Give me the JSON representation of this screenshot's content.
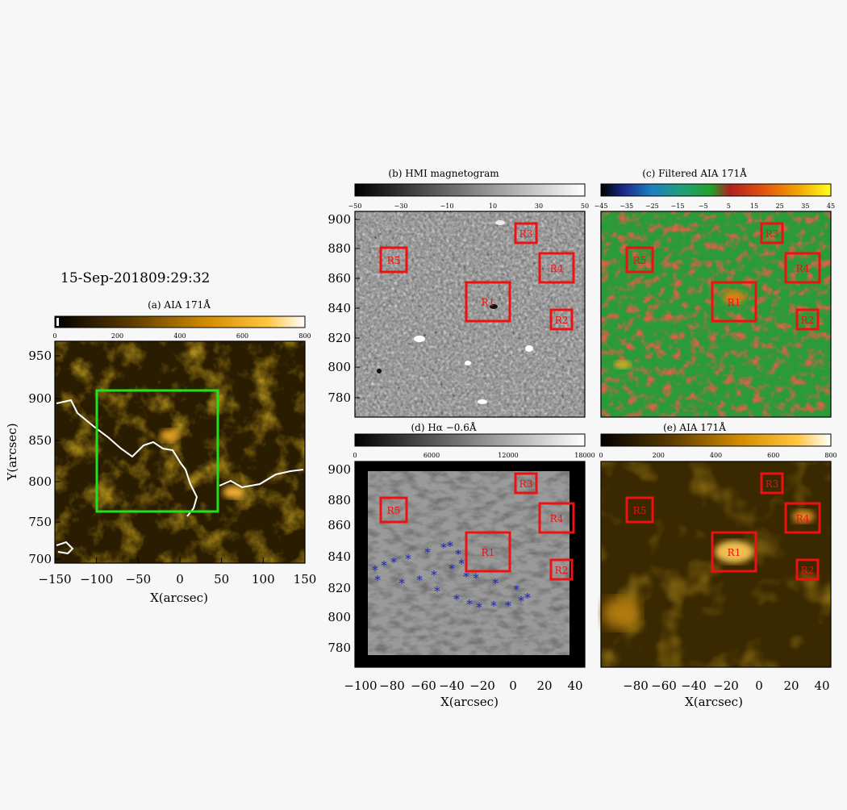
{
  "figure": {
    "timestamp": "15-Sep-201809:29:32",
    "panel_a": {
      "title": "(a) AIA 171Å",
      "colorbar_ticks": [
        "0",
        "200",
        "400",
        "600",
        "800"
      ],
      "y_ticks": [
        "950",
        "900",
        "850",
        "800",
        "750",
        "700"
      ],
      "x_ticks": [
        "−150",
        "−100",
        "−50",
        "0",
        "50",
        "100",
        "150"
      ],
      "xlabel": "X(arcsec)",
      "ylabel": "Y(arcsec)",
      "colors": {
        "box": "#22e01c",
        "contour": "#ffffff",
        "map_dark": "#1d1400",
        "map_bright": "#c88400"
      }
    },
    "panel_b": {
      "title": "(b) HMI magnetogram",
      "colorbar_ticks": [
        "−50",
        "−30",
        "−10",
        "10",
        "30",
        "50"
      ]
    },
    "panel_c": {
      "title": "(c) Filtered AIA 171Å",
      "colorbar_ticks": [
        "−45",
        "−35",
        "−25",
        "−15",
        "−5",
        "5",
        "15",
        "25",
        "35",
        "45"
      ]
    },
    "panel_d": {
      "title": "(d) Hα −0.6Å",
      "colorbar_ticks": [
        "0",
        "6000",
        "12000",
        "18000"
      ]
    },
    "panel_e": {
      "title": "(e) AIA 171Å",
      "colorbar_ticks": [
        "0",
        "200",
        "400",
        "600",
        "800"
      ]
    },
    "right_y_ticks": [
      "900",
      "880",
      "860",
      "840",
      "820",
      "800",
      "780"
    ],
    "right_x_ticks": [
      "−100",
      "−80",
      "−60",
      "−40",
      "−20",
      "0",
      "20",
      "40"
    ],
    "right_xlabel": "X(arcsec)",
    "regions": [
      "R1",
      "R2",
      "R3",
      "R4",
      "R5"
    ],
    "region_color": "#ee1111",
    "marker_color": "#1020dd"
  }
}
